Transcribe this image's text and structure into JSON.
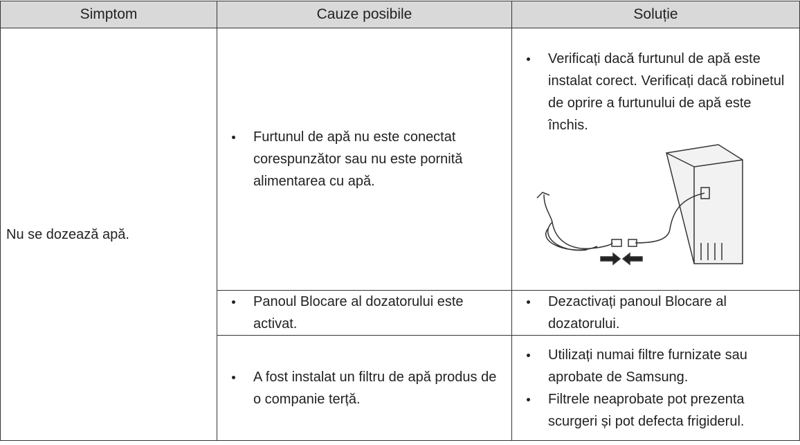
{
  "table": {
    "header": [
      "Simptom",
      "Cauze posibile",
      "Soluție"
    ],
    "symptom": "Nu se dozează apă.",
    "rows": [
      {
        "causes": [
          "Furtunul de apă nu este conectat corespunzător sau nu este pornită alimentarea cu apă."
        ],
        "solutions": [
          "Verificați dacă furtunul de apă este instalat corect. Verificați dacă robinetul de oprire a furtunului de apă este închis."
        ]
      },
      {
        "causes": [
          "Panoul Blocare al dozatorului este activat."
        ],
        "solutions": [
          "Dezactivați panoul Blocare al dozatorului."
        ]
      },
      {
        "causes": [
          "A fost instalat un filtru de apă produs de o companie terță."
        ],
        "solutions": [
          "Utilizați numai filtre furnizate sau aprobate de Samsung.",
          "Filtrele neaprobate pot prezenta scurgeri și pot defecta frigiderul."
        ]
      }
    ]
  }
}
